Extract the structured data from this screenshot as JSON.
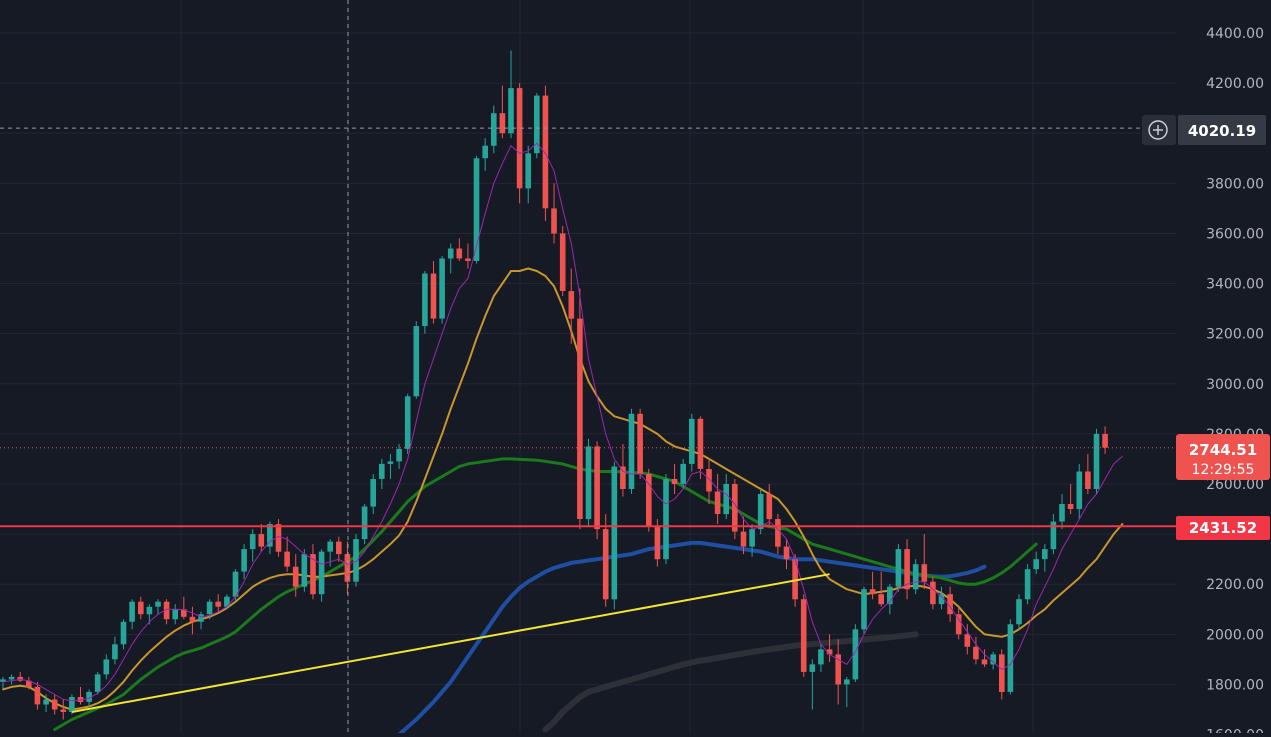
{
  "colors": {
    "background": "#161a25",
    "grid": "#232734",
    "axis_text": "#b2b5be",
    "candle_up": "#26a69a",
    "candle_down": "#ef5350",
    "ma_fast": "#9c27b0",
    "ma_20": "#c9962c",
    "ma_50": "#1b7a1b",
    "ma_100": "#1e4fa3",
    "ma_200": "#2e3038",
    "trendline": "#f5e333",
    "level_line": "#f23645",
    "crosshair": "#9598a1"
  },
  "chart_data": {
    "type": "candlestick",
    "y_axis": {
      "min": 1600,
      "max": 4400,
      "position": "right",
      "tick_labels": [
        "4400.00",
        "4200.00",
        "3800.00",
        "3600.00",
        "3400.00",
        "3200.00",
        "3000.00",
        "2800.00",
        "2600.00",
        "2200.00",
        "2000.00",
        "1800.00",
        "1600.00"
      ]
    },
    "grid": true,
    "crosshair_price_label": "4020.19",
    "current_price": {
      "label": "2744.51",
      "countdown": "12:29:55"
    },
    "horizontal_level": {
      "value": 2431.52,
      "label": "2431.52"
    },
    "trendline": {
      "from_index": 8,
      "from_value": 1690,
      "to_index": 96,
      "to_value": 2240
    },
    "candles": [
      [
        1810,
        1830,
        1780,
        1820
      ],
      [
        1820,
        1840,
        1800,
        1830
      ],
      [
        1830,
        1850,
        1810,
        1815
      ],
      [
        1815,
        1830,
        1780,
        1790
      ],
      [
        1790,
        1810,
        1700,
        1720
      ],
      [
        1720,
        1760,
        1690,
        1740
      ],
      [
        1740,
        1760,
        1680,
        1700
      ],
      [
        1700,
        1740,
        1660,
        1690
      ],
      [
        1690,
        1760,
        1680,
        1750
      ],
      [
        1750,
        1790,
        1720,
        1730
      ],
      [
        1730,
        1780,
        1710,
        1770
      ],
      [
        1770,
        1850,
        1760,
        1840
      ],
      [
        1840,
        1920,
        1820,
        1900
      ],
      [
        1900,
        1990,
        1880,
        1960
      ],
      [
        1960,
        2060,
        1940,
        2050
      ],
      [
        2050,
        2140,
        2020,
        2130
      ],
      [
        2130,
        2150,
        2060,
        2080
      ],
      [
        2080,
        2120,
        2040,
        2110
      ],
      [
        2110,
        2140,
        2080,
        2130
      ],
      [
        2130,
        2140,
        2040,
        2060
      ],
      [
        2060,
        2120,
        2040,
        2100
      ],
      [
        2100,
        2150,
        2060,
        2070
      ],
      [
        2070,
        2110,
        2000,
        2050
      ],
      [
        2050,
        2090,
        2020,
        2080
      ],
      [
        2080,
        2140,
        2060,
        2130
      ],
      [
        2130,
        2160,
        2090,
        2110
      ],
      [
        2110,
        2160,
        2100,
        2150
      ],
      [
        2150,
        2260,
        2130,
        2250
      ],
      [
        2250,
        2360,
        2220,
        2340
      ],
      [
        2340,
        2420,
        2290,
        2400
      ],
      [
        2400,
        2440,
        2330,
        2350
      ],
      [
        2350,
        2450,
        2320,
        2440
      ],
      [
        2440,
        2460,
        2310,
        2330
      ],
      [
        2330,
        2390,
        2250,
        2270
      ],
      [
        2270,
        2320,
        2150,
        2190
      ],
      [
        2190,
        2340,
        2170,
        2320
      ],
      [
        2320,
        2360,
        2140,
        2160
      ],
      [
        2160,
        2340,
        2130,
        2330
      ],
      [
        2330,
        2380,
        2270,
        2370
      ],
      [
        2370,
        2390,
        2290,
        2320
      ],
      [
        2320,
        2370,
        2160,
        2210
      ],
      [
        2210,
        2400,
        2190,
        2380
      ],
      [
        2380,
        2520,
        2360,
        2510
      ],
      [
        2510,
        2640,
        2480,
        2620
      ],
      [
        2620,
        2700,
        2580,
        2680
      ],
      [
        2680,
        2720,
        2620,
        2690
      ],
      [
        2690,
        2760,
        2660,
        2740
      ],
      [
        2740,
        2960,
        2720,
        2950
      ],
      [
        2950,
        3250,
        2940,
        3230
      ],
      [
        3230,
        3450,
        3200,
        3440
      ],
      [
        3440,
        3490,
        3240,
        3260
      ],
      [
        3260,
        3510,
        3240,
        3500
      ],
      [
        3500,
        3560,
        3440,
        3540
      ],
      [
        3540,
        3580,
        3490,
        3500
      ],
      [
        3500,
        3560,
        3460,
        3490
      ],
      [
        3490,
        3910,
        3480,
        3900
      ],
      [
        3900,
        3980,
        3850,
        3950
      ],
      [
        3950,
        4110,
        3920,
        4080
      ],
      [
        4080,
        4190,
        3980,
        4000
      ],
      [
        4000,
        4330,
        3980,
        4180
      ],
      [
        4180,
        4200,
        3720,
        3780
      ],
      [
        3780,
        3950,
        3720,
        3920
      ],
      [
        3920,
        4160,
        3900,
        4150
      ],
      [
        4150,
        4190,
        3650,
        3700
      ],
      [
        3700,
        3800,
        3560,
        3600
      ],
      [
        3600,
        3630,
        3350,
        3370
      ],
      [
        3370,
        3460,
        3160,
        3260
      ],
      [
        3260,
        3380,
        2420,
        2460
      ],
      [
        2460,
        2780,
        2430,
        2750
      ],
      [
        2750,
        2770,
        2380,
        2420
      ],
      [
        2420,
        2480,
        2110,
        2140
      ],
      [
        2140,
        2690,
        2100,
        2670
      ],
      [
        2670,
        2760,
        2550,
        2580
      ],
      [
        2580,
        2900,
        2560,
        2880
      ],
      [
        2880,
        2900,
        2620,
        2640
      ],
      [
        2640,
        2660,
        2410,
        2430
      ],
      [
        2430,
        2460,
        2270,
        2300
      ],
      [
        2300,
        2640,
        2280,
        2620
      ],
      [
        2620,
        2680,
        2560,
        2600
      ],
      [
        2600,
        2700,
        2580,
        2680
      ],
      [
        2680,
        2880,
        2650,
        2860
      ],
      [
        2860,
        2870,
        2620,
        2660
      ],
      [
        2660,
        2700,
        2520,
        2570
      ],
      [
        2570,
        2640,
        2440,
        2480
      ],
      [
        2480,
        2640,
        2460,
        2600
      ],
      [
        2600,
        2620,
        2380,
        2410
      ],
      [
        2410,
        2470,
        2320,
        2350
      ],
      [
        2350,
        2440,
        2310,
        2420
      ],
      [
        2420,
        2580,
        2400,
        2560
      ],
      [
        2560,
        2600,
        2430,
        2460
      ],
      [
        2460,
        2480,
        2320,
        2350
      ],
      [
        2350,
        2380,
        2260,
        2300
      ],
      [
        2300,
        2320,
        2110,
        2140
      ],
      [
        2140,
        2160,
        1830,
        1850
      ],
      [
        1850,
        1900,
        1700,
        1880
      ],
      [
        1880,
        1960,
        1850,
        1940
      ],
      [
        1940,
        2000,
        1890,
        1920
      ],
      [
        1920,
        1980,
        1720,
        1800
      ],
      [
        1800,
        1830,
        1710,
        1820
      ],
      [
        1820,
        2040,
        1810,
        2020
      ],
      [
        2020,
        2190,
        2000,
        2180
      ],
      [
        2180,
        2250,
        2140,
        2160
      ],
      [
        2160,
        2250,
        2110,
        2120
      ],
      [
        2120,
        2200,
        2080,
        2190
      ],
      [
        2190,
        2360,
        2170,
        2340
      ],
      [
        2340,
        2380,
        2140,
        2180
      ],
      [
        2180,
        2300,
        2160,
        2280
      ],
      [
        2280,
        2400,
        2180,
        2210
      ],
      [
        2210,
        2230,
        2100,
        2120
      ],
      [
        2120,
        2190,
        2100,
        2160
      ],
      [
        2160,
        2190,
        2050,
        2080
      ],
      [
        2080,
        2110,
        1980,
        2000
      ],
      [
        2000,
        2040,
        1920,
        1950
      ],
      [
        1950,
        1990,
        1880,
        1900
      ],
      [
        1900,
        1940,
        1870,
        1880
      ],
      [
        1880,
        1930,
        1860,
        1920
      ],
      [
        1920,
        1940,
        1740,
        1770
      ],
      [
        1770,
        2060,
        1760,
        2040
      ],
      [
        2040,
        2160,
        2020,
        2140
      ],
      [
        2140,
        2280,
        2120,
        2260
      ],
      [
        2260,
        2330,
        2240,
        2300
      ],
      [
        2300,
        2360,
        2250,
        2340
      ],
      [
        2340,
        2480,
        2320,
        2450
      ],
      [
        2450,
        2560,
        2420,
        2520
      ],
      [
        2520,
        2600,
        2480,
        2500
      ],
      [
        2500,
        2680,
        2460,
        2650
      ],
      [
        2650,
        2720,
        2560,
        2580
      ],
      [
        2580,
        2820,
        2560,
        2800
      ],
      [
        2800,
        2830,
        2720,
        2745
      ]
    ],
    "ma_fast": [
      1810,
      1815,
      1820,
      1815,
      1800,
      1780,
      1760,
      1740,
      1735,
      1738,
      1745,
      1765,
      1795,
      1840,
      1900,
      1960,
      2010,
      2050,
      2080,
      2100,
      2100,
      2098,
      2085,
      2070,
      2075,
      2090,
      2110,
      2150,
      2210,
      2280,
      2330,
      2370,
      2390,
      2380,
      2350,
      2320,
      2300,
      2280,
      2290,
      2300,
      2280,
      2290,
      2330,
      2390,
      2450,
      2520,
      2600,
      2700,
      2850,
      3000,
      3100,
      3200,
      3300,
      3380,
      3420,
      3550,
      3680,
      3800,
      3880,
      3950,
      3920,
      3930,
      3960,
      3920,
      3850,
      3700,
      3560,
      3350,
      3100,
      2950,
      2800,
      2700,
      2650,
      2640,
      2640,
      2600,
      2550,
      2520,
      2540,
      2580,
      2640,
      2650,
      2620,
      2580,
      2560,
      2520,
      2460,
      2420,
      2430,
      2450,
      2420,
      2380,
      2300,
      2180,
      2050,
      1960,
      1920,
      1900,
      1880,
      1930,
      2000,
      2060,
      2100,
      2130,
      2180,
      2200,
      2210,
      2210,
      2180,
      2150,
      2110,
      2060,
      2010,
      1960,
      1920,
      1890,
      1860,
      1880,
      1940,
      2020,
      2120,
      2190,
      2260,
      2340,
      2400,
      2460,
      2520,
      2560,
      2620,
      2680,
      2710
    ],
    "ma_20": [
      1780,
      1790,
      1795,
      1790,
      1770,
      1745,
      1725,
      1710,
      1700,
      1705,
      1712,
      1725,
      1745,
      1775,
      1810,
      1855,
      1895,
      1930,
      1960,
      1990,
      2015,
      2035,
      2050,
      2060,
      2070,
      2085,
      2105,
      2130,
      2160,
      2190,
      2210,
      2225,
      2235,
      2240,
      2240,
      2235,
      2230,
      2230,
      2235,
      2240,
      2245,
      2255,
      2275,
      2300,
      2330,
      2360,
      2395,
      2450,
      2530,
      2620,
      2710,
      2800,
      2900,
      2990,
      3080,
      3180,
      3270,
      3350,
      3400,
      3450,
      3450,
      3460,
      3450,
      3430,
      3390,
      3310,
      3210,
      3100,
      3010,
      2950,
      2900,
      2870,
      2860,
      2850,
      2840,
      2820,
      2800,
      2770,
      2750,
      2740,
      2730,
      2720,
      2700,
      2680,
      2660,
      2640,
      2620,
      2600,
      2580,
      2560,
      2540,
      2500,
      2450,
      2390,
      2320,
      2260,
      2220,
      2200,
      2180,
      2170,
      2160,
      2165,
      2170,
      2175,
      2185,
      2190,
      2195,
      2190,
      2180,
      2165,
      2140,
      2110,
      2070,
      2030,
      2000,
      1995,
      1990,
      2000,
      2020,
      2045,
      2075,
      2100,
      2135,
      2165,
      2195,
      2225,
      2265,
      2300,
      2350,
      2400,
      2440
    ],
    "ma_50": [
      null,
      null,
      null,
      null,
      null,
      null,
      1620,
      1640,
      1660,
      1675,
      1690,
      1705,
      1720,
      1740,
      1760,
      1790,
      1820,
      1845,
      1870,
      1890,
      1910,
      1925,
      1935,
      1945,
      1960,
      1975,
      1990,
      2010,
      2040,
      2070,
      2100,
      2125,
      2150,
      2170,
      2185,
      2200,
      2215,
      2230,
      2250,
      2270,
      2290,
      2310,
      2340,
      2375,
      2410,
      2450,
      2490,
      2530,
      2560,
      2590,
      2610,
      2630,
      2650,
      2670,
      2680,
      2685,
      2690,
      2695,
      2700,
      2700,
      2698,
      2697,
      2695,
      2690,
      2685,
      2680,
      2670,
      2660,
      2655,
      2650,
      2650,
      2650,
      2648,
      2646,
      2645,
      2640,
      2630,
      2620,
      2610,
      2590,
      2570,
      2550,
      2530,
      2520,
      2510,
      2500,
      2480,
      2460,
      2440,
      2430,
      2425,
      2420,
      2400,
      2380,
      2360,
      2350,
      2340,
      2330,
      2320,
      2310,
      2300,
      2290,
      2280,
      2270,
      2260,
      2250,
      2240,
      2235,
      2230,
      2225,
      2215,
      2205,
      2200,
      2200,
      2210,
      2225,
      2245,
      2270,
      2300,
      2330,
      2360
    ],
    "ma_100": [
      null,
      null,
      null,
      null,
      null,
      null,
      null,
      null,
      null,
      null,
      null,
      null,
      null,
      null,
      null,
      null,
      null,
      null,
      null,
      null,
      null,
      null,
      null,
      null,
      null,
      null,
      null,
      null,
      null,
      null,
      null,
      null,
      null,
      null,
      null,
      null,
      null,
      null,
      null,
      null,
      null,
      null,
      null,
      null,
      null,
      null,
      1600,
      1630,
      1660,
      1695,
      1730,
      1770,
      1810,
      1860,
      1910,
      1960,
      2010,
      2060,
      2110,
      2150,
      2185,
      2210,
      2230,
      2250,
      2265,
      2275,
      2285,
      2290,
      2295,
      2300,
      2305,
      2310,
      2315,
      2320,
      2330,
      2340,
      2345,
      2350,
      2355,
      2360,
      2365,
      2365,
      2360,
      2355,
      2350,
      2345,
      2340,
      2335,
      2330,
      2320,
      2310,
      2305,
      2300,
      2300,
      2300,
      2295,
      2290,
      2285,
      2280,
      2275,
      2270,
      2265,
      2260,
      2255,
      2250,
      2245,
      2240,
      2235,
      2232,
      2230,
      2232,
      2238,
      2245,
      2255,
      2270
    ],
    "ma_200": [
      null,
      null,
      null,
      null,
      null,
      null,
      null,
      null,
      null,
      null,
      null,
      null,
      null,
      null,
      null,
      null,
      null,
      null,
      null,
      null,
      null,
      null,
      null,
      null,
      null,
      null,
      null,
      null,
      null,
      null,
      null,
      null,
      null,
      null,
      null,
      null,
      null,
      null,
      null,
      null,
      null,
      null,
      null,
      null,
      null,
      null,
      null,
      null,
      null,
      null,
      null,
      null,
      null,
      null,
      null,
      null,
      null,
      null,
      null,
      null,
      null,
      null,
      null,
      1620,
      1650,
      1690,
      1720,
      1750,
      1770,
      1780,
      1790,
      1800,
      1810,
      1820,
      1830,
      1840,
      1850,
      1860,
      1870,
      1880,
      1888,
      1895,
      1900,
      1906,
      1912,
      1918,
      1924,
      1930,
      1935,
      1940,
      1945,
      1950,
      1955,
      1958,
      1961,
      1964,
      1967,
      1970,
      1973,
      1976,
      1979,
      1982,
      1985,
      1988,
      1992,
      1996,
      2000
    ]
  }
}
